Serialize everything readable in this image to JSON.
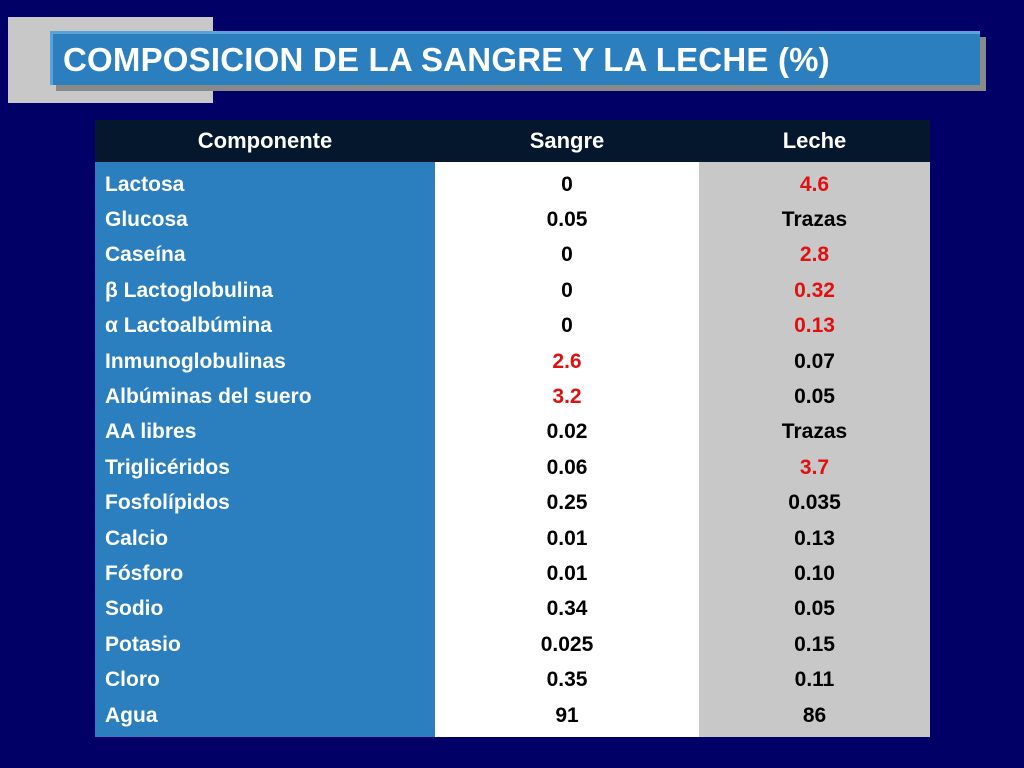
{
  "slide": {
    "title": "COMPOSICION DE LA SANGRE Y LA LECHE (%)"
  },
  "table": {
    "headers": [
      "Componente",
      "Sangre",
      "Leche"
    ],
    "rows": [
      {
        "componente": "Lactosa",
        "sangre": "0",
        "leche": "4.6",
        "sangre_highlight": false,
        "leche_highlight": true
      },
      {
        "componente": "Glucosa",
        "sangre": "0.05",
        "leche": "Trazas",
        "sangre_highlight": false,
        "leche_highlight": false
      },
      {
        "componente": "Caseína",
        "sangre": "0",
        "leche": "2.8",
        "sangre_highlight": false,
        "leche_highlight": true
      },
      {
        "componente": "β Lactoglobulina",
        "sangre": "0",
        "leche": "0.32",
        "sangre_highlight": false,
        "leche_highlight": true
      },
      {
        "componente": "α Lactoalbúmina",
        "sangre": "0",
        "leche": "0.13",
        "sangre_highlight": false,
        "leche_highlight": true
      },
      {
        "componente": "Inmunoglobulinas",
        "sangre": "2.6",
        "leche": "0.07",
        "sangre_highlight": true,
        "leche_highlight": false
      },
      {
        "componente": "Albúminas del suero",
        "sangre": "3.2",
        "leche": "0.05",
        "sangre_highlight": true,
        "leche_highlight": false
      },
      {
        "componente": "AA libres",
        "sangre": "0.02",
        "leche": "Trazas",
        "sangre_highlight": false,
        "leche_highlight": false
      },
      {
        "componente": "Triglicéridos",
        "sangre": "0.06",
        "leche": "3.7",
        "sangre_highlight": false,
        "leche_highlight": true
      },
      {
        "componente": "Fosfolípidos",
        "sangre": "0.25",
        "leche": "0.035",
        "sangre_highlight": false,
        "leche_highlight": false
      },
      {
        "componente": "Calcio",
        "sangre": "0.01",
        "leche": "0.13",
        "sangre_highlight": false,
        "leche_highlight": false
      },
      {
        "componente": "Fósforo",
        "sangre": "0.01",
        "leche": "0.10",
        "sangre_highlight": false,
        "leche_highlight": false
      },
      {
        "componente": "Sodio",
        "sangre": "0.34",
        "leche": "0.05",
        "sangre_highlight": false,
        "leche_highlight": false
      },
      {
        "componente": "Potasio",
        "sangre": "0.025",
        "leche": "0.15",
        "sangre_highlight": false,
        "leche_highlight": false
      },
      {
        "componente": "Cloro",
        "sangre": "0.35",
        "leche": "0.11",
        "sangre_highlight": false,
        "leche_highlight": false
      },
      {
        "componente": "Agua",
        "sangre": "91",
        "leche": "86",
        "sangre_highlight": false,
        "leche_highlight": false
      }
    ]
  },
  "colors": {
    "background": "#000066",
    "title_box": "#2b7fbf",
    "header_row": "#04172c",
    "name_column": "#2b7fbf",
    "sangre_column": "#ffffff",
    "leche_column": "#c8c8c8",
    "highlight_text": "#e01010",
    "decorative_square": "#c8c8c8"
  }
}
